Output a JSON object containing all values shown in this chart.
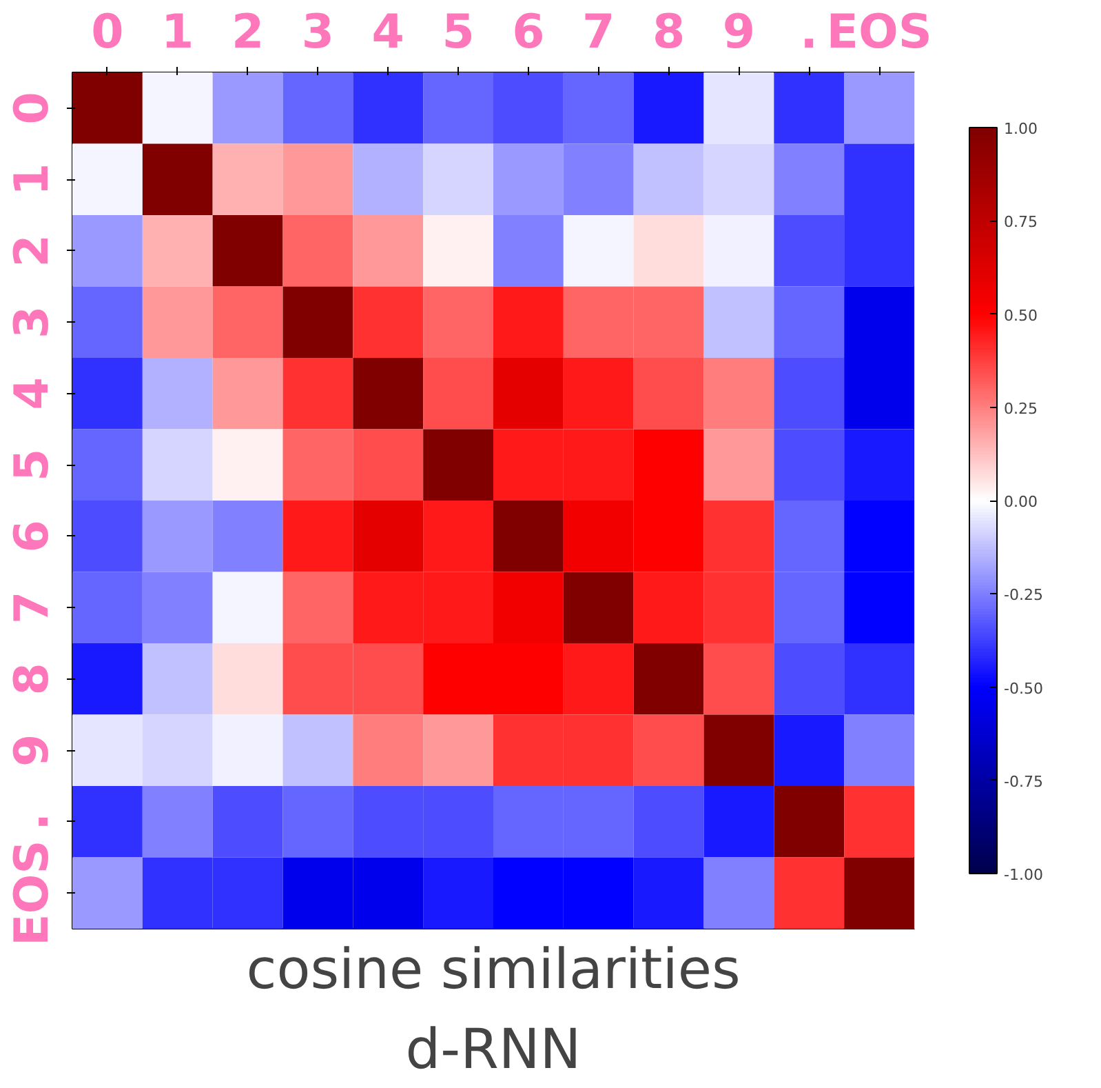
{
  "chart_data": {
    "type": "heatmap",
    "title": "cosine similarities",
    "subtitle": "d-RNN",
    "categories": [
      "0",
      "1",
      "2",
      "3",
      "4",
      "5",
      "6",
      "7",
      "8",
      "9",
      ".",
      "EOS"
    ],
    "y_categories": [
      "0",
      "1",
      "2",
      "3",
      "4",
      "5",
      "6",
      "7",
      "8",
      "9",
      ".",
      "EOS"
    ],
    "cells": [
      [
        1,
        -0.02,
        -0.2,
        -0.3,
        -0.4,
        -0.3,
        -0.35,
        -0.3,
        -0.45,
        -0.05,
        -0.4,
        -0.2
      ],
      [
        -0.02,
        1,
        0.15,
        0.2,
        -0.15,
        -0.08,
        -0.2,
        -0.25,
        -0.12,
        -0.08,
        -0.25,
        -0.4
      ],
      [
        -0.2,
        0.15,
        1,
        0.3,
        0.2,
        0.03,
        -0.25,
        -0.02,
        0.07,
        -0.03,
        -0.35,
        -0.4
      ],
      [
        -0.3,
        0.2,
        0.3,
        1,
        0.4,
        0.3,
        0.45,
        0.3,
        0.3,
        -0.12,
        -0.3,
        -0.55
      ],
      [
        -0.4,
        -0.15,
        0.2,
        0.4,
        1,
        0.35,
        0.6,
        0.45,
        0.35,
        0.25,
        -0.35,
        -0.55
      ],
      [
        -0.3,
        -0.08,
        0.03,
        0.3,
        0.35,
        1,
        0.45,
        0.45,
        0.5,
        0.2,
        -0.35,
        -0.45
      ],
      [
        -0.35,
        -0.2,
        -0.25,
        0.45,
        0.6,
        0.45,
        1,
        0.55,
        0.5,
        0.4,
        -0.3,
        -0.5
      ],
      [
        -0.3,
        -0.25,
        -0.02,
        0.3,
        0.45,
        0.45,
        0.55,
        1,
        0.45,
        0.4,
        -0.3,
        -0.5
      ],
      [
        -0.45,
        -0.12,
        0.07,
        0.35,
        0.35,
        0.5,
        0.5,
        0.45,
        1,
        0.35,
        -0.35,
        -0.4
      ],
      [
        -0.05,
        -0.08,
        -0.03,
        -0.12,
        0.25,
        0.2,
        0.4,
        0.4,
        0.35,
        1,
        -0.45,
        -0.25
      ],
      [
        -0.4,
        -0.25,
        -0.35,
        -0.3,
        -0.35,
        -0.35,
        -0.3,
        -0.3,
        -0.35,
        -0.45,
        1,
        0.4
      ],
      [
        -0.2,
        -0.4,
        -0.4,
        -0.55,
        -0.55,
        -0.45,
        -0.5,
        -0.5,
        -0.45,
        -0.25,
        0.4,
        1
      ]
    ],
    "clim": [
      -1,
      1
    ],
    "cticks": [
      {
        "value": -1,
        "label": "-1.00"
      },
      {
        "value": -0.75,
        "label": "-0.75"
      },
      {
        "value": -0.5,
        "label": "-0.50"
      },
      {
        "value": -0.25,
        "label": "-0.25"
      },
      {
        "value": 0,
        "label": "0.00"
      },
      {
        "value": 0.25,
        "label": "0.25"
      },
      {
        "value": 0.5,
        "label": "0.50"
      },
      {
        "value": 0.75,
        "label": "0.75"
      },
      {
        "value": 1,
        "label": "1.00"
      }
    ]
  }
}
